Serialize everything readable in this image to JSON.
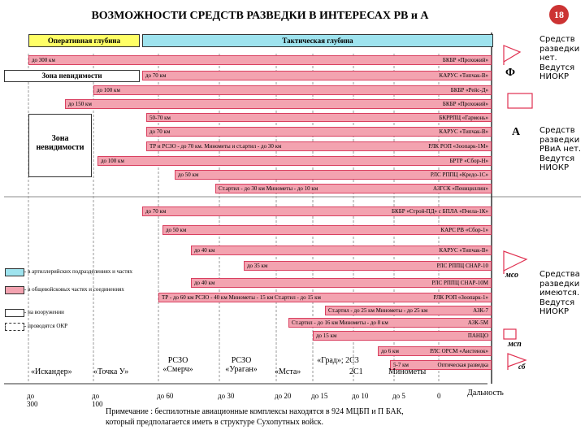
{
  "page_number": "18",
  "title": "ВОЗМОЖНОСТИ СРЕДСТВ РАЗВЕДКИ В ИНТЕРЕСАХ РВ и А",
  "header": {
    "operational": "Оперативная глубина",
    "tactical": "Тактическая глубина"
  },
  "invisibility_zones": [
    "Зона невидимости",
    "Зона невидимости"
  ],
  "bars": [
    {
      "range": "до 300 км",
      "name": "БКБР «Прохожий»"
    },
    {
      "range": "до 70 км",
      "name": "КАРУС «Типчак-В»"
    },
    {
      "range": "до 100 км",
      "name": "БКБР «Рейс-Д»"
    },
    {
      "range": "до 150 км",
      "name": "БКБР «Прохожий»"
    },
    {
      "range": "50-70 км",
      "name": "БКРРПЦ «Гармонь»"
    },
    {
      "range": "до 70 км",
      "name": "КАРУС «Типчак-В»"
    },
    {
      "range": "ТР и РСЗО - до 70 км.  Минометы и ст.артил - до 30 км",
      "name": "РЛК РОП «Зоопарк-1М»"
    },
    {
      "range": "до 100 км",
      "name": "БРТР «Сбор-Н»"
    },
    {
      "range": "до 50 км",
      "name": "РЛС РППЦ «Кредо-1С»"
    },
    {
      "range": "Ст.артил - до 30 км    Минометы - до 10 км",
      "name": "АЗГСК «Пенициллин»"
    },
    {
      "range": "до 70 км",
      "name": "БКБР «Строй-ПД» с БПЛА «Пчела-1К»"
    },
    {
      "range": "до 50 км",
      "name": "КАРС РВ «Сбор-1»"
    },
    {
      "range": "до 40 км",
      "name": "КАРУС «Типчак-В»"
    },
    {
      "range": "до 35 км",
      "name": "РЛС РППЦ СНАР-10"
    },
    {
      "range": "до 40 км",
      "name": "РЛС РППЦ СНАР-10М"
    },
    {
      "range": "ТР - до 60 км   РСЗО - 40 км   Минометы - 15 км   Ст.артил - до 15 км",
      "name": "РЛК РОП «Зоопарк-1»"
    },
    {
      "range": "Ст.артил - до 25 км    Минометы - до 25 км",
      "name": "АЗК-7"
    },
    {
      "range": "Ст.артил - до 16 км    Минометы - до 8 км",
      "name": "АЗК-5М"
    },
    {
      "range": "до 15 км",
      "name": "ПАНЦО"
    },
    {
      "range": "до 6 км",
      "name": "РЛС ОРСМ «Аистенок»"
    },
    {
      "range": "5-7 км",
      "name": "Оптическая разведка"
    }
  ],
  "legend": [
    "- в артиллерийских подразделениях и частях",
    "- в общевойсковых частях и соединениях",
    "- на вооружении",
    "- проводятся ОКР"
  ],
  "weapons": [
    "«Искандер»",
    "«Точка У»",
    "РСЗО «Смерч»",
    "РСЗО «Ураган»",
    "«Мста»",
    "«Град»; 2С3",
    "2С1",
    "Минометы"
  ],
  "distances": [
    "до 300",
    "до 100",
    "до 60",
    "до 30",
    "до 20",
    "до 15",
    "до 10",
    "до 5",
    "0"
  ],
  "distance_label": "Дальность",
  "levels": [
    "Ф",
    "А",
    "мсо",
    "мсп",
    "сб"
  ],
  "notes": [
    "Средств разведки нет. Ведутся НИОКР",
    "Средств разведки РВиА нет. Ведутся НИОКР",
    "Средства разведки имеются. Ведутся НИОКР"
  ],
  "footnote": "Примечание : беспилотные авиационные комплексы находятся в 924 МЦБП и П БАК, который предполагается иметь в структуре Сухопутных войск."
}
